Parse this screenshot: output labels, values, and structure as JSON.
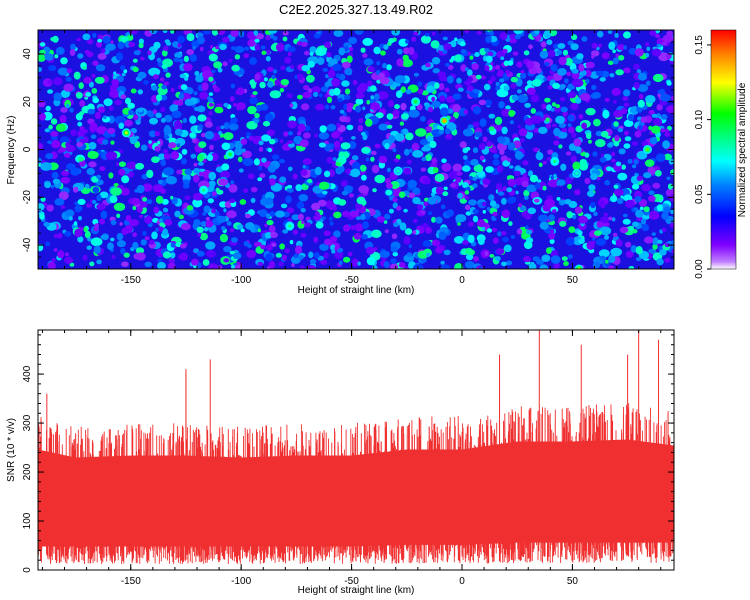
{
  "title": "C2E2.2025.327.13.49.R02",
  "chart_data": [
    {
      "type": "heatmap",
      "xlabel": "Height of straight line (km)",
      "ylabel": "Frequency (Hz)",
      "xlim": [
        -192,
        96
      ],
      "ylim": [
        -50,
        50
      ],
      "xticks": [
        -150,
        -100,
        -50,
        0,
        50
      ],
      "yticks": [
        -40,
        -20,
        0,
        20,
        40
      ],
      "colorbar": {
        "label": "Normalized spectral amplitude",
        "range": [
          0,
          0.16
        ],
        "ticks": [
          0,
          0.05,
          0.1,
          0.15
        ],
        "tick_labels": [
          "0.00",
          "0.05",
          "0.10",
          "0.15"
        ]
      },
      "colormap": [
        "#ffffff",
        "#b400ff",
        "#0000ff",
        "#0080ff",
        "#00ffff",
        "#00ff80",
        "#00ff00",
        "#ffff00",
        "#ff8000",
        "#ff0000"
      ],
      "background_level": 0.02,
      "peaks": [
        {
          "x": -152,
          "y": 7,
          "value": 0.12
        },
        {
          "x": -105,
          "y": -2,
          "value": 0.1
        },
        {
          "x": -117,
          "y": -17,
          "value": 0.09
        },
        {
          "x": -78,
          "y": -32,
          "value": 0.09
        },
        {
          "x": -8,
          "y": 12,
          "value": 0.14
        },
        {
          "x": -21,
          "y": 20,
          "value": 0.1
        },
        {
          "x": 53,
          "y": -50,
          "value": 0.12
        },
        {
          "x": 84,
          "y": 0,
          "value": 0.11
        },
        {
          "x": 42,
          "y": -5,
          "value": 0.09
        },
        {
          "x": 52,
          "y": -10,
          "value": 0.08
        },
        {
          "x": -29,
          "y": -9,
          "value": 0.08
        }
      ],
      "grid": false
    },
    {
      "type": "area",
      "xlabel": "Height of straight line (km)",
      "ylabel": "SNR (10 * v/v)",
      "xlim": [
        -192,
        96
      ],
      "ylim": [
        0,
        490
      ],
      "xticks": [
        -150,
        -100,
        -50,
        0,
        50
      ],
      "yticks": [
        0,
        100,
        200,
        300,
        400
      ],
      "color": "#f03030",
      "grid": false,
      "series": [
        {
          "x": [
            -192,
            -175,
            -150,
            -125,
            -100,
            -75,
            -50,
            -25,
            0,
            25,
            50,
            75,
            96
          ],
          "upper": [
            300,
            280,
            285,
            285,
            280,
            285,
            285,
            300,
            300,
            320,
            320,
            325,
            310
          ],
          "lower": [
            30,
            30,
            30,
            30,
            30,
            30,
            30,
            32,
            32,
            35,
            35,
            35,
            35
          ],
          "spikes": [
            {
              "x": -114,
              "value": 430
            },
            {
              "x": -125,
              "value": 400
            },
            {
              "x": -125,
              "value": 410
            },
            {
              "x": 17,
              "value": 440
            },
            {
              "x": 35,
              "value": 490
            },
            {
              "x": 54,
              "value": 460
            },
            {
              "x": 75,
              "value": 440
            },
            {
              "x": 80,
              "value": 490
            },
            {
              "x": 89,
              "value": 470
            },
            {
              "x": -188,
              "value": 360
            }
          ]
        }
      ]
    }
  ]
}
